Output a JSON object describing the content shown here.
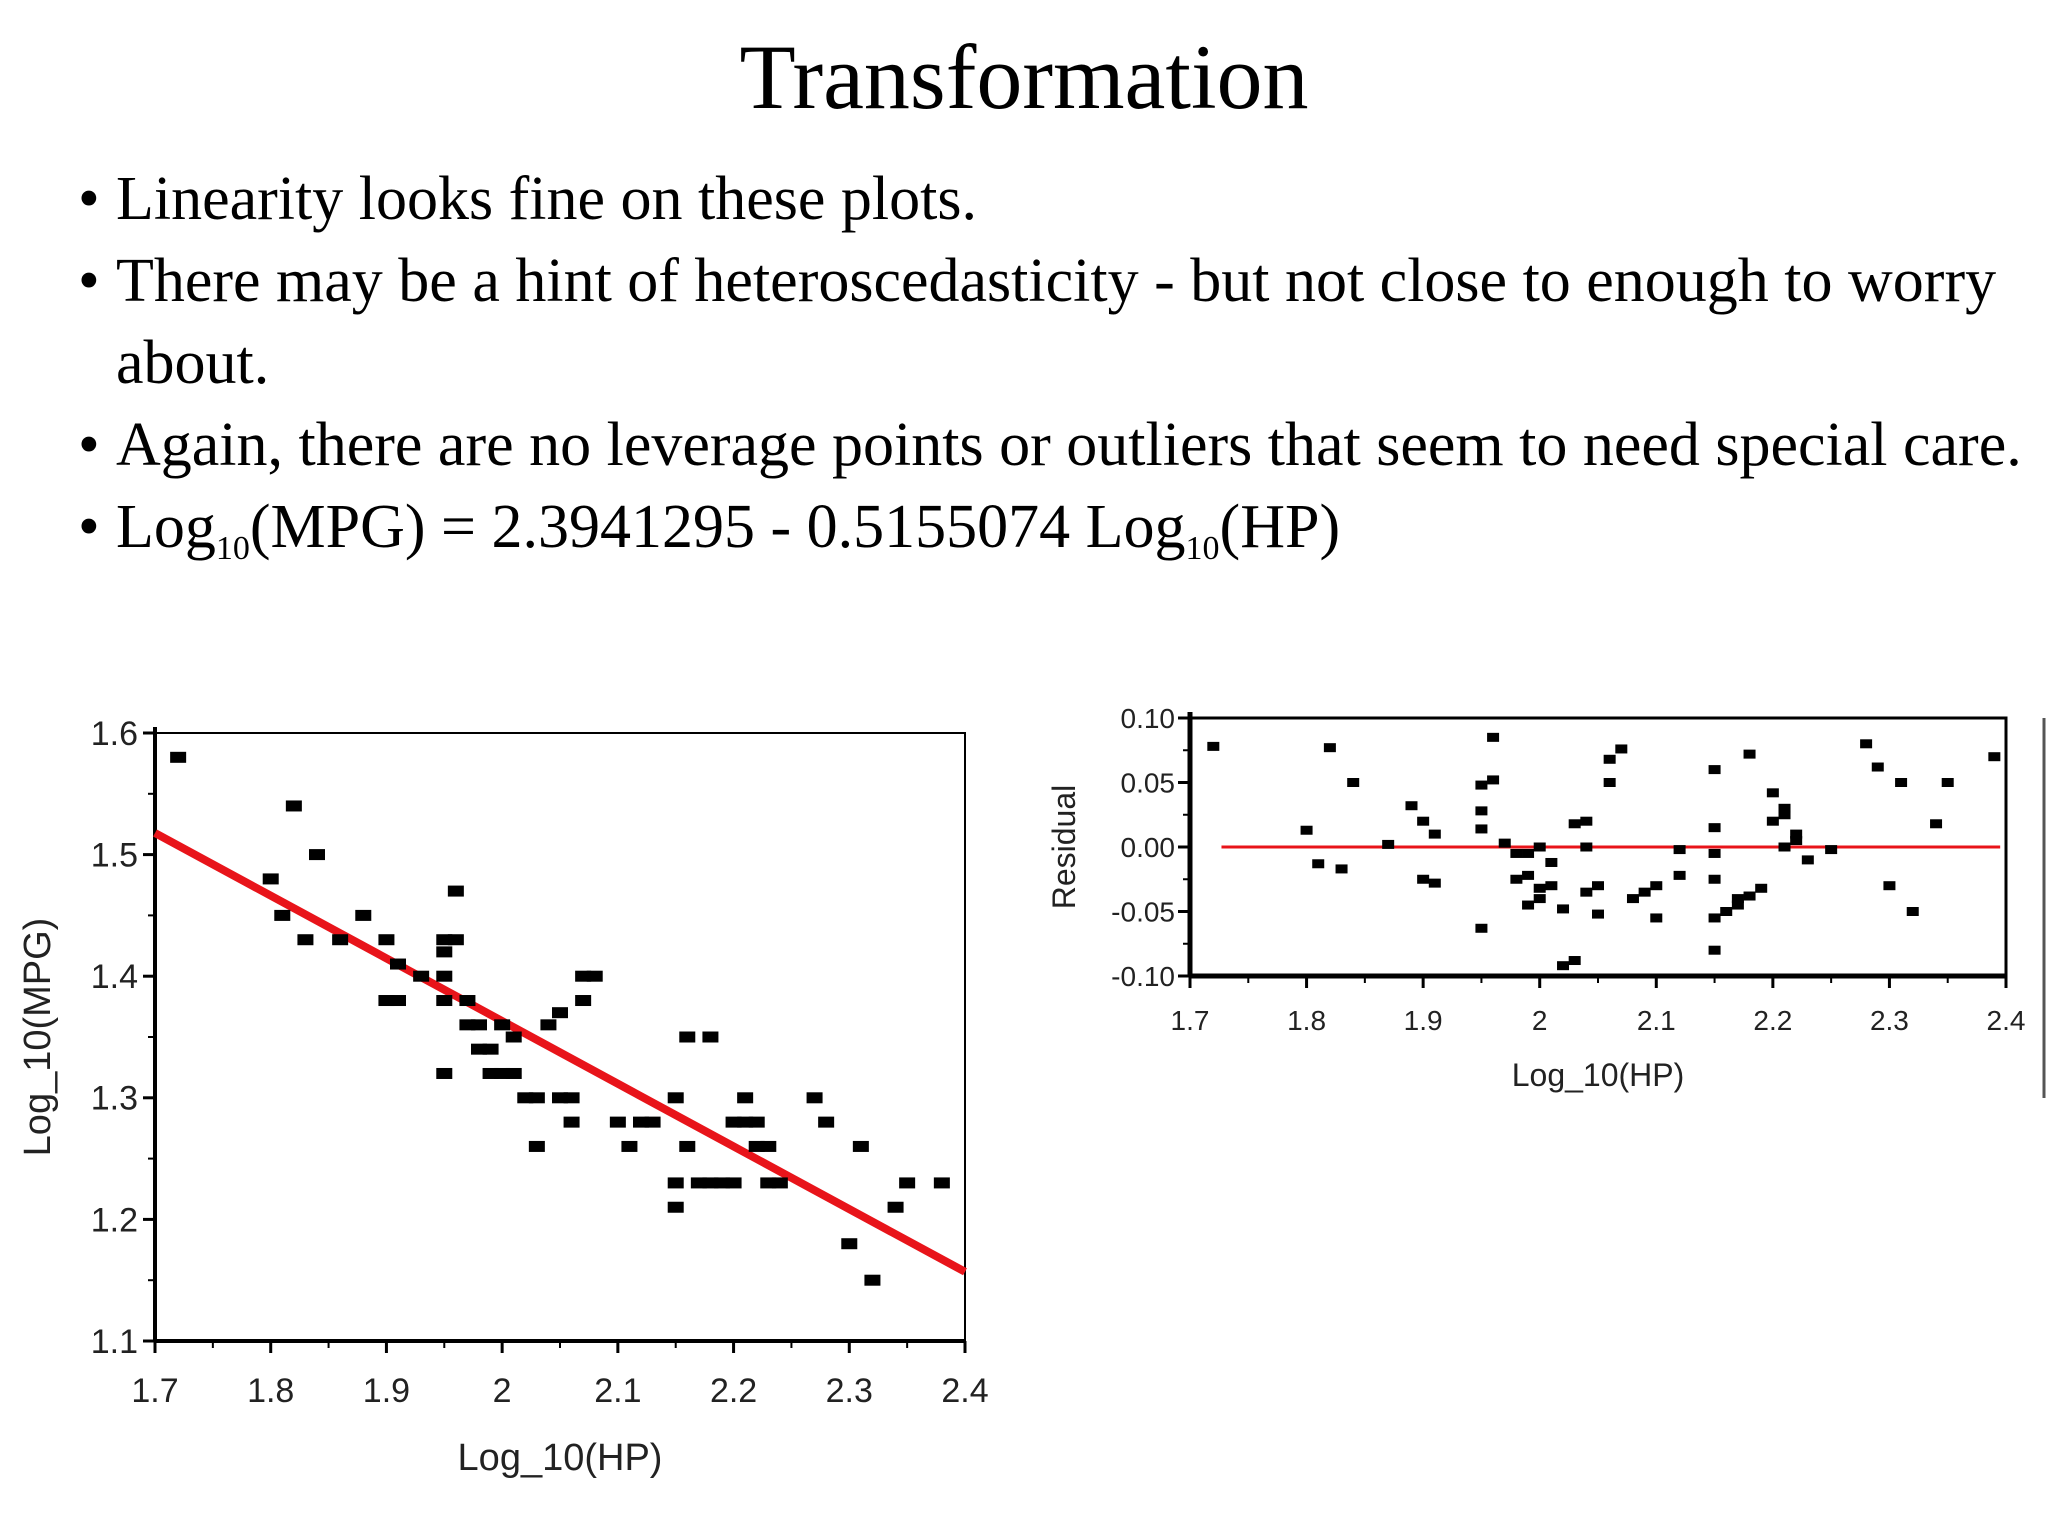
{
  "slide": {
    "title": "Transformation",
    "bullets": [
      "Linearity looks fine on these plots.",
      "There may be a hint of heteroscedasticity - but not close to enough to worry about.",
      "Again, there are no leverage points or outliers that seem to need special care."
    ],
    "equation": {
      "p1": "Log",
      "sub1": "10",
      "p2": "(MPG) = 2.3941295  - 0.5155074 Log",
      "sub2": "10",
      "p3": "(HP)"
    }
  },
  "colors": {
    "fit_line": "#e8141a",
    "points": "#000000"
  },
  "chart_data": [
    {
      "type": "scatter",
      "title": "",
      "xlabel": "Log_10(HP)",
      "ylabel": "Log_10(MPG)",
      "xlim": [
        1.7,
        2.4
      ],
      "ylim": [
        1.1,
        1.6
      ],
      "x_ticks": [
        "1.7",
        "1.8",
        "1.9",
        "2",
        "2.1",
        "2.2",
        "2.3",
        "2.4"
      ],
      "y_ticks": [
        "1.1",
        "1.2",
        "1.3",
        "1.4",
        "1.5",
        "1.6"
      ],
      "fit_line": {
        "intercept": 2.3941295,
        "slope": -0.5155074
      },
      "points": [
        [
          1.72,
          1.58
        ],
        [
          1.8,
          1.48
        ],
        [
          1.81,
          1.45
        ],
        [
          1.82,
          1.54
        ],
        [
          1.83,
          1.43
        ],
        [
          1.84,
          1.5
        ],
        [
          1.86,
          1.43
        ],
        [
          1.88,
          1.45
        ],
        [
          1.9,
          1.43
        ],
        [
          1.9,
          1.38
        ],
        [
          1.91,
          1.38
        ],
        [
          1.91,
          1.41
        ],
        [
          1.93,
          1.4
        ],
        [
          1.95,
          1.32
        ],
        [
          1.95,
          1.38
        ],
        [
          1.95,
          1.4
        ],
        [
          1.95,
          1.42
        ],
        [
          1.95,
          1.43
        ],
        [
          1.96,
          1.43
        ],
        [
          1.96,
          1.47
        ],
        [
          1.97,
          1.38
        ],
        [
          1.97,
          1.36
        ],
        [
          1.98,
          1.34
        ],
        [
          1.98,
          1.36
        ],
        [
          1.99,
          1.32
        ],
        [
          1.99,
          1.34
        ],
        [
          2.0,
          1.36
        ],
        [
          2.0,
          1.32
        ],
        [
          2.01,
          1.35
        ],
        [
          2.01,
          1.32
        ],
        [
          2.02,
          1.3
        ],
        [
          2.03,
          1.26
        ],
        [
          2.03,
          1.3
        ],
        [
          2.04,
          1.36
        ],
        [
          2.05,
          1.37
        ],
        [
          2.05,
          1.3
        ],
        [
          2.06,
          1.3
        ],
        [
          2.06,
          1.28
        ],
        [
          2.07,
          1.38
        ],
        [
          2.07,
          1.4
        ],
        [
          2.08,
          1.4
        ],
        [
          2.1,
          1.28
        ],
        [
          2.11,
          1.26
        ],
        [
          2.12,
          1.28
        ],
        [
          2.13,
          1.28
        ],
        [
          2.15,
          1.3
        ],
        [
          2.15,
          1.21
        ],
        [
          2.15,
          1.23
        ],
        [
          2.16,
          1.26
        ],
        [
          2.16,
          1.35
        ],
        [
          2.17,
          1.23
        ],
        [
          2.18,
          1.23
        ],
        [
          2.18,
          1.35
        ],
        [
          2.19,
          1.23
        ],
        [
          2.2,
          1.23
        ],
        [
          2.2,
          1.28
        ],
        [
          2.21,
          1.28
        ],
        [
          2.21,
          1.3
        ],
        [
          2.22,
          1.28
        ],
        [
          2.22,
          1.26
        ],
        [
          2.23,
          1.23
        ],
        [
          2.23,
          1.26
        ],
        [
          2.24,
          1.23
        ],
        [
          2.27,
          1.3
        ],
        [
          2.28,
          1.28
        ],
        [
          2.3,
          1.18
        ],
        [
          2.31,
          1.26
        ],
        [
          2.32,
          1.15
        ],
        [
          2.34,
          1.21
        ],
        [
          2.35,
          1.23
        ],
        [
          2.38,
          1.23
        ]
      ]
    },
    {
      "type": "scatter",
      "title": "",
      "xlabel": "Log_10(HP)",
      "ylabel": "Residual",
      "xlim": [
        1.7,
        2.4
      ],
      "ylim": [
        -0.1,
        0.1
      ],
      "x_ticks": [
        "1.7",
        "1.8",
        "1.9",
        "2",
        "2.1",
        "2.2",
        "2.3",
        "2.4"
      ],
      "y_ticks": [
        "-0.10",
        "-0.05",
        "0.00",
        "0.05",
        "0.10"
      ],
      "reference_line": 0,
      "points": [
        [
          1.72,
          0.078
        ],
        [
          1.8,
          0.013
        ],
        [
          1.81,
          -0.013
        ],
        [
          1.82,
          0.077
        ],
        [
          1.83,
          -0.017
        ],
        [
          1.84,
          0.05
        ],
        [
          1.87,
          0.002
        ],
        [
          1.89,
          0.032
        ],
        [
          1.9,
          0.02
        ],
        [
          1.9,
          -0.025
        ],
        [
          1.91,
          0.01
        ],
        [
          1.91,
          -0.028
        ],
        [
          1.95,
          -0.063
        ],
        [
          1.95,
          0.014
        ],
        [
          1.95,
          0.028
        ],
        [
          1.95,
          0.048
        ],
        [
          1.96,
          0.052
        ],
        [
          1.96,
          0.085
        ],
        [
          1.97,
          0.003
        ],
        [
          1.98,
          -0.005
        ],
        [
          1.98,
          -0.025
        ],
        [
          1.99,
          -0.045
        ],
        [
          1.99,
          -0.005
        ],
        [
          1.99,
          -0.022
        ],
        [
          2.0,
          -0.032
        ],
        [
          2.0,
          0.0
        ],
        [
          2.0,
          -0.04
        ],
        [
          2.01,
          -0.012
        ],
        [
          2.01,
          -0.03
        ],
        [
          2.02,
          -0.048
        ],
        [
          2.02,
          -0.092
        ],
        [
          2.03,
          -0.088
        ],
        [
          2.03,
          0.018
        ],
        [
          2.04,
          0.02
        ],
        [
          2.04,
          0.0
        ],
        [
          2.04,
          -0.035
        ],
        [
          2.05,
          -0.03
        ],
        [
          2.05,
          -0.052
        ],
        [
          2.06,
          0.068
        ],
        [
          2.06,
          0.05
        ],
        [
          2.07,
          0.076
        ],
        [
          2.08,
          -0.04
        ],
        [
          2.09,
          -0.035
        ],
        [
          2.1,
          -0.055
        ],
        [
          2.1,
          -0.03
        ],
        [
          2.12,
          -0.022
        ],
        [
          2.12,
          -0.002
        ],
        [
          2.15,
          0.06
        ],
        [
          2.15,
          0.015
        ],
        [
          2.15,
          -0.005
        ],
        [
          2.15,
          -0.025
        ],
        [
          2.15,
          -0.055
        ],
        [
          2.15,
          -0.08
        ],
        [
          2.16,
          -0.05
        ],
        [
          2.17,
          -0.045
        ],
        [
          2.17,
          -0.04
        ],
        [
          2.18,
          -0.038
        ],
        [
          2.18,
          0.072
        ],
        [
          2.19,
          -0.032
        ],
        [
          2.2,
          0.042
        ],
        [
          2.2,
          0.02
        ],
        [
          2.21,
          0.025
        ],
        [
          2.21,
          0.0
        ],
        [
          2.21,
          0.03
        ],
        [
          2.22,
          0.01
        ],
        [
          2.22,
          0.005
        ],
        [
          2.23,
          -0.01
        ],
        [
          2.25,
          -0.002
        ],
        [
          2.28,
          0.08
        ],
        [
          2.29,
          0.062
        ],
        [
          2.3,
          -0.03
        ],
        [
          2.31,
          0.05
        ],
        [
          2.32,
          -0.05
        ],
        [
          2.34,
          0.018
        ],
        [
          2.35,
          0.05
        ],
        [
          2.39,
          0.07
        ]
      ]
    }
  ]
}
